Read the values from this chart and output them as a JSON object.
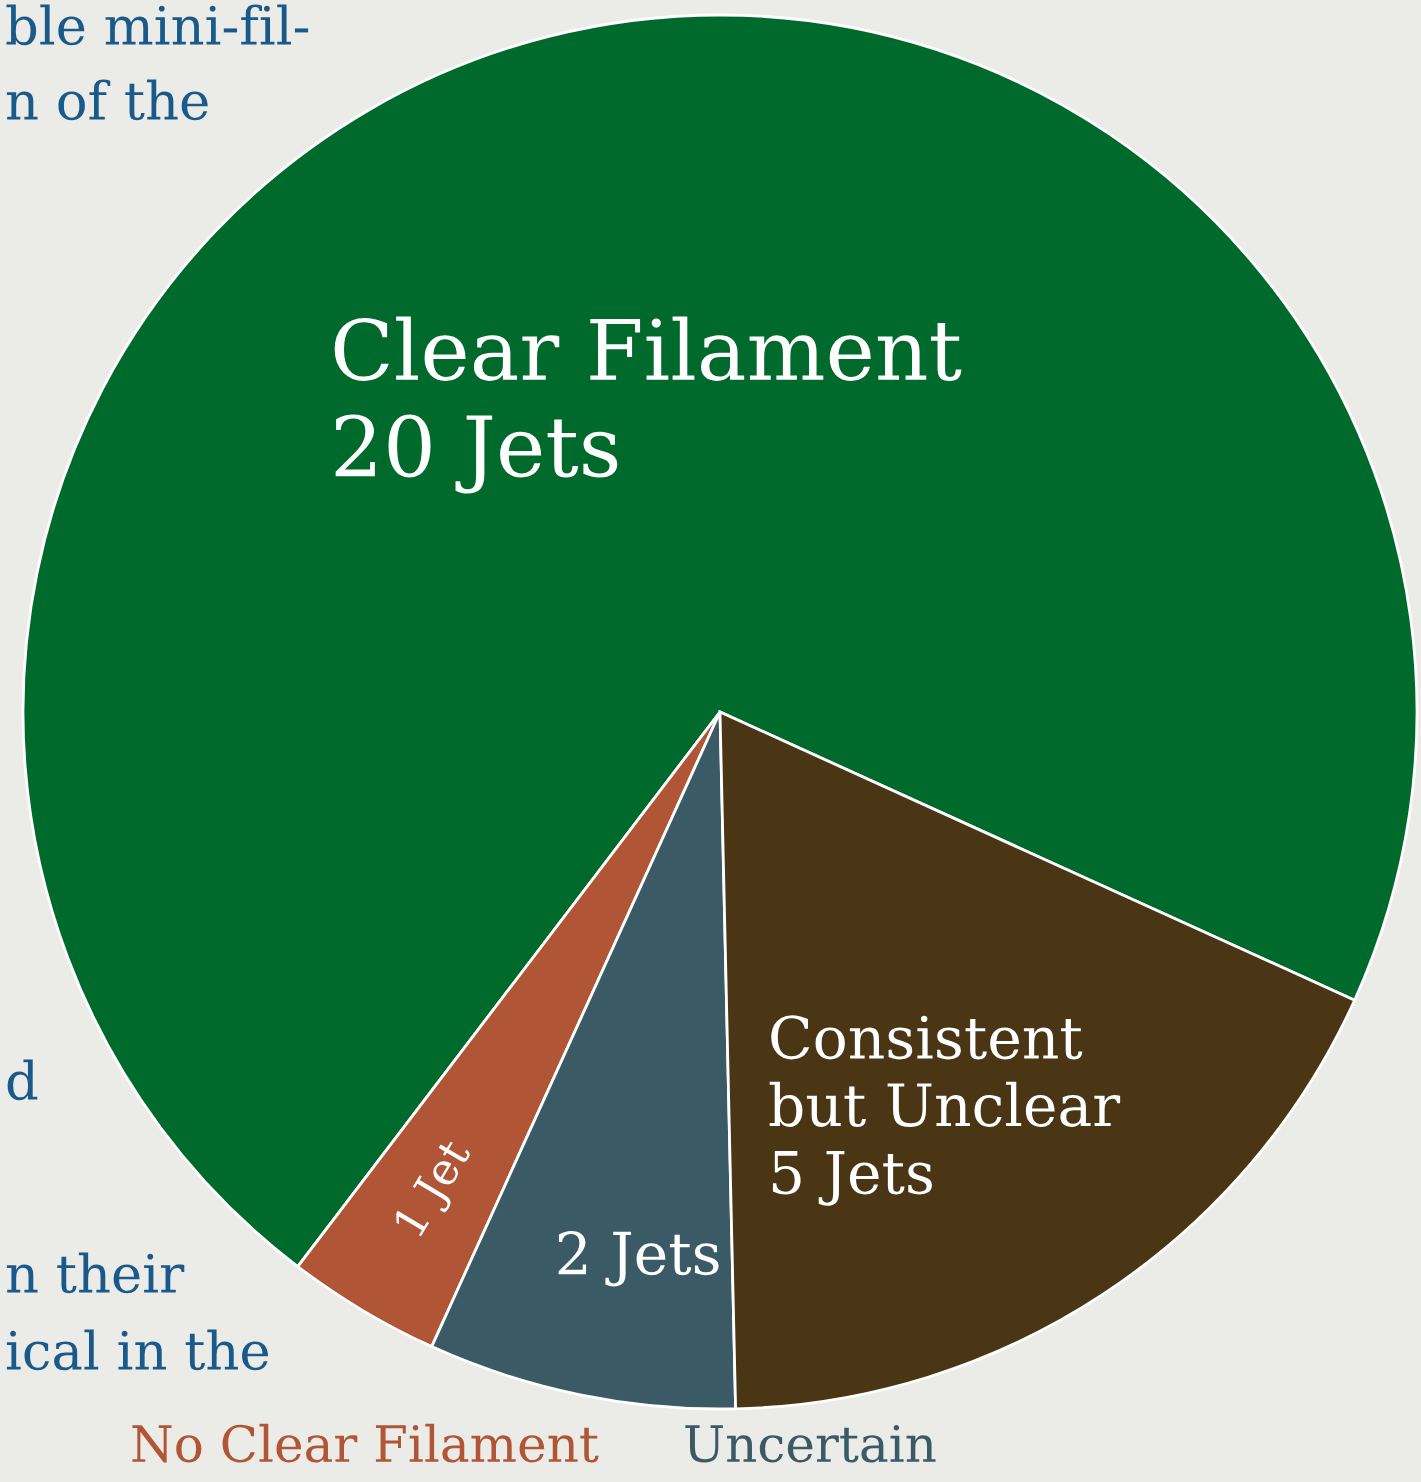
{
  "chart_data": {
    "type": "pie",
    "categories": [
      "Clear Filament",
      "No Clear Filament",
      "Uncertain",
      "Consistent but Unclear"
    ],
    "values": [
      20,
      1,
      2,
      5
    ],
    "colors": [
      "#006a2c",
      "#b05535",
      "#3a5a66",
      "#4a3614"
    ],
    "value_labels": [
      "20 Jets",
      "1 Jet",
      "2 Jets",
      "5 Jets"
    ],
    "annotations": [
      "ble mini-fil-",
      "n of the",
      "d",
      "n their",
      "ical in the"
    ]
  }
}
